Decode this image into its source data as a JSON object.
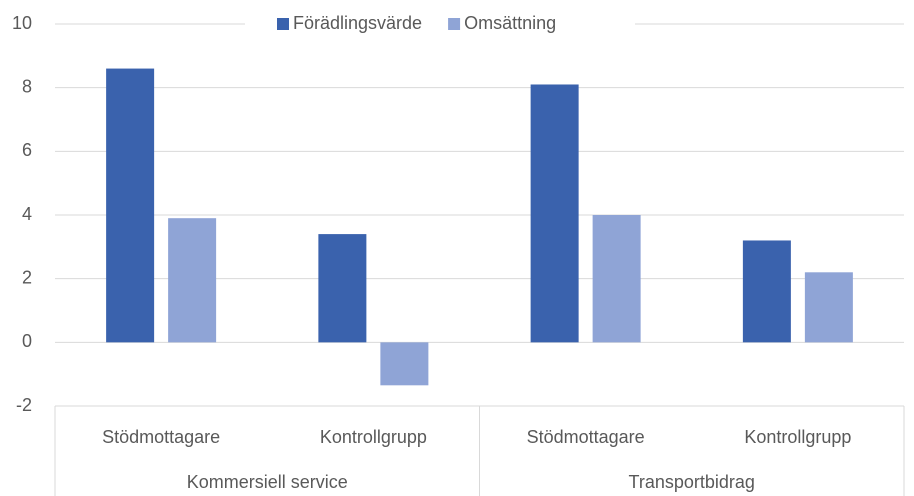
{
  "chart_data": {
    "type": "bar",
    "categories": [
      "Stödmottagare",
      "Kontrollgrupp",
      "Stödmottagare",
      "Kontrollgrupp"
    ],
    "groups": [
      "Kommersiell service",
      "Transportbidrag"
    ],
    "series": [
      {
        "name": "Förädlingsvärde",
        "color": "#3a62ad",
        "values": [
          8.6,
          3.4,
          8.1,
          3.2
        ]
      },
      {
        "name": "Omsättning",
        "color": "#8fa4d6",
        "values": [
          3.9,
          -1.35,
          4.0,
          2.2
        ]
      }
    ],
    "ylim": [
      -2,
      10
    ],
    "yticks": [
      -2,
      0,
      2,
      4,
      6,
      8,
      10
    ],
    "grid": true,
    "legend": "top"
  }
}
